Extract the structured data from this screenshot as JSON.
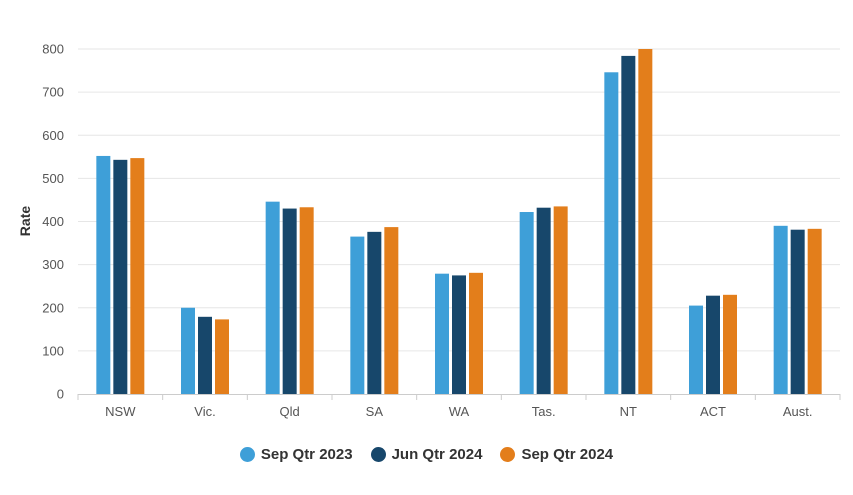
{
  "chart_data": {
    "type": "bar",
    "title": "",
    "xlabel": "",
    "ylabel": "Rate",
    "ylim": [
      0,
      800
    ],
    "yticks": [
      0,
      100,
      200,
      300,
      400,
      500,
      600,
      700,
      800
    ],
    "grid": true,
    "legend_position": "bottom",
    "categories": [
      "NSW",
      "Vic.",
      "Qld",
      "SA",
      "WA",
      "Tas.",
      "NT",
      "ACT",
      "Aust."
    ],
    "series": [
      {
        "name": "Sep Qtr 2023",
        "color": "#3E9FD8",
        "values": [
          552,
          200,
          446,
          365,
          279,
          422,
          746,
          205,
          390
        ]
      },
      {
        "name": "Jun Qtr 2024",
        "color": "#17476B",
        "values": [
          543,
          179,
          430,
          376,
          275,
          432,
          784,
          228,
          381
        ]
      },
      {
        "name": "Sep Qtr 2024",
        "color": "#E37E1B",
        "values": [
          547,
          173,
          433,
          387,
          281,
          435,
          800,
          230,
          383
        ]
      }
    ]
  }
}
